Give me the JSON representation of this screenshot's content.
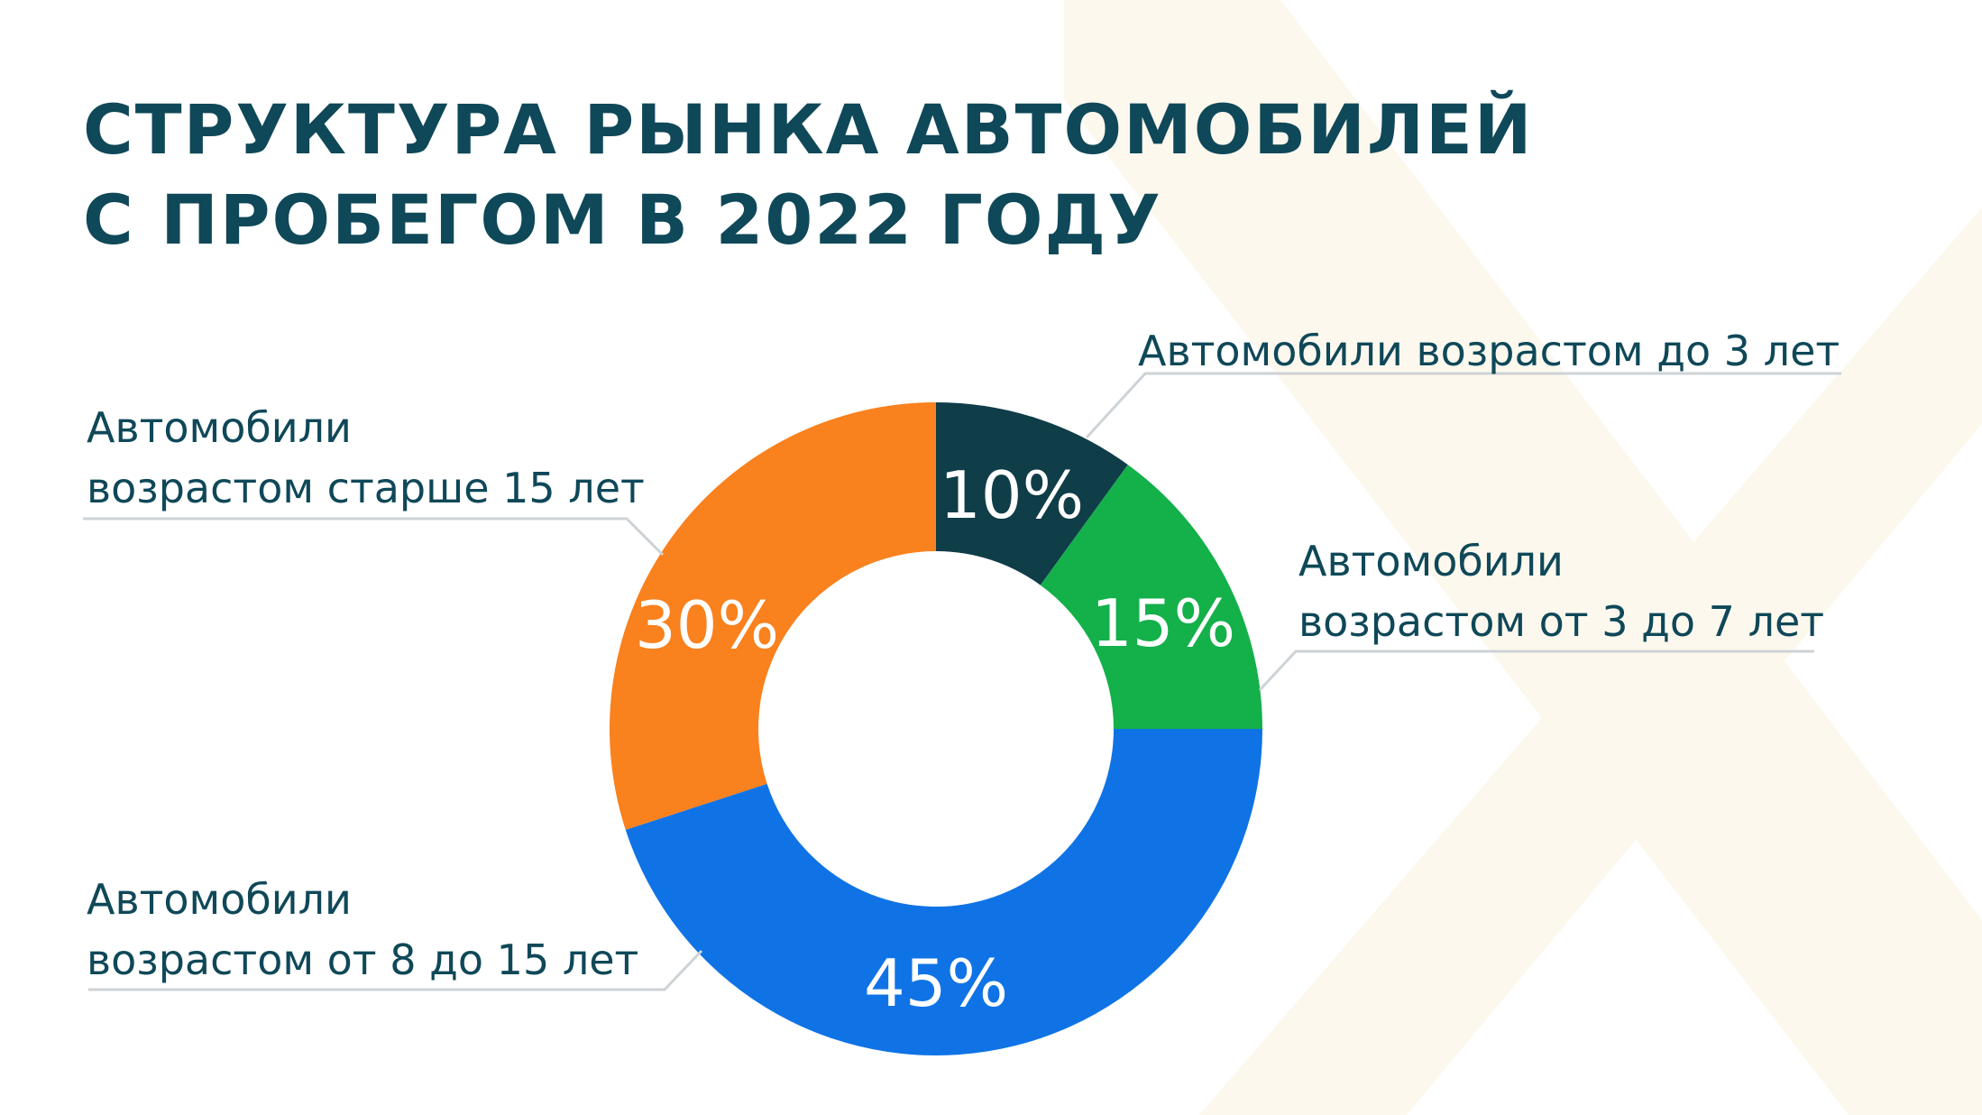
{
  "title": {
    "line1": "СТРУКТУРА РЫНКА АВТОМОБИЛЕЙ",
    "line2": "С ПРОБЕГОМ В 2022 ГОДУ"
  },
  "chart_data": {
    "type": "pie",
    "variant": "donut",
    "title": "СТРУКТУРА РЫНКА АВТОМОБИЛЕЙ С ПРОБЕГОМ В 2022 ГОДУ",
    "unit": "%",
    "slices": [
      {
        "label": "Автомобили возрастом до 3 лет",
        "label_lines": [
          "Автомобили возрастом до 3 лет"
        ],
        "value": 10,
        "value_label": "10%",
        "color": "#0f3d48"
      },
      {
        "label": "Автомобили возрастом от 3 до 7 лет",
        "label_lines": [
          "Автомобили",
          "возрастом от 3 до 7 лет"
        ],
        "value": 15,
        "value_label": "15%",
        "color": "#14b04a"
      },
      {
        "label": "Автомобили возрастом от 8 до 15 лет",
        "label_lines": [
          "Автомобили",
          "возрастом от 8 до 15 лет"
        ],
        "value": 45,
        "value_label": "45%",
        "color": "#0f73e6"
      },
      {
        "label": "Автомобили возрастом старше 15 лет",
        "label_lines": [
          "Автомобили",
          "возрастом старше 15 лет"
        ],
        "value": 30,
        "value_label": "30%",
        "color": "#f9811e"
      }
    ],
    "legend": "callouts"
  },
  "colors": {
    "title": "#0f4858",
    "label_text": "#0f4858",
    "leader_line": "#cdd3d6",
    "background_watermark": "#fdf8ee"
  }
}
